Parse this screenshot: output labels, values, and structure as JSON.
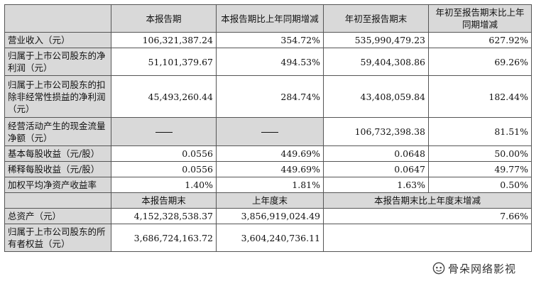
{
  "header": {
    "col1": "本报告期",
    "col2": "本报告期比上年同期增减",
    "col3": "年初至报告期末",
    "col4": "年初至报告期末比上年同期增减"
  },
  "rows": [
    {
      "label": "营业收入（元）",
      "v1": "106,321,387.24",
      "v2": "354.72%",
      "v3": "535,990,479.23",
      "v4": "627.92%"
    },
    {
      "label": "归属于上市公司股东的净利润（元）",
      "v1": "51,101,379.67",
      "v2": "494.53%",
      "v3": "59,404,308.86",
      "v4": "69.26%"
    },
    {
      "label": "归属于上市公司股东的扣除非经常性损益的净利润（元）",
      "v1": "45,493,260.44",
      "v2": "284.74%",
      "v3": "43,408,059.84",
      "v4": "182.44%"
    },
    {
      "label": "经营活动产生的现金流量净额（元）",
      "v1": "——",
      "v2": "——",
      "v3": "106,732,398.38",
      "v4": "81.51%"
    },
    {
      "label": "基本每股收益（元/股）",
      "v1": "0.0556",
      "v2": "449.69%",
      "v3": "0.0648",
      "v4": "50.00%"
    },
    {
      "label": "稀释每股收益（元/股）",
      "v1": "0.0556",
      "v2": "449.69%",
      "v3": "0.0647",
      "v4": "49.77%"
    },
    {
      "label": "加权平均净资产收益率",
      "v1": "1.40%",
      "v2": "1.81%",
      "v3": "1.63%",
      "v4": "0.50%"
    }
  ],
  "header2": {
    "col1": "本报告期末",
    "col2": "上年度末",
    "col3": "本报告期末比上年度末增减"
  },
  "rows2": [
    {
      "label": "总资产（元）",
      "v1": "4,152,328,538.37",
      "v2": "3,856,919,024.49",
      "v3": "7.66%"
    },
    {
      "label": "归属于上市公司股东的所有者权益（元）",
      "v1": "3,686,724,163.72",
      "v2": "3,604,240,736.11",
      "v3": ""
    }
  ],
  "watermark": {
    "text": "骨朵网络影视",
    "icon": "wechat-icon"
  }
}
